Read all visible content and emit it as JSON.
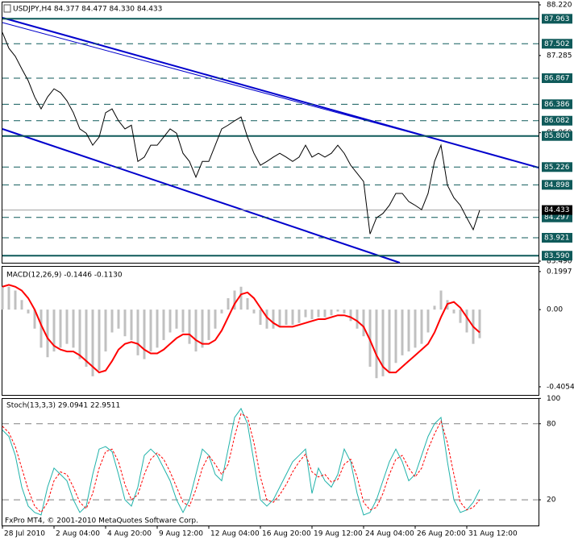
{
  "chart_data": [
    {
      "type": "line",
      "title": "USDJPY,H4 84.377 84.477 84.330 84.433",
      "categories": [
        "28 Jul 2010",
        null,
        null,
        null,
        null,
        null,
        null,
        null,
        "2 Aug 04:00",
        null,
        null,
        null,
        null,
        null,
        null,
        null,
        "4 Aug 20:00",
        null,
        null,
        null,
        null,
        null,
        null,
        null,
        "9 Aug 12:00",
        null,
        null,
        null,
        null,
        null,
        null,
        null,
        "12 Aug 04:00",
        null,
        null,
        null,
        null,
        null,
        null,
        null,
        "16 Aug 20:00",
        null,
        null,
        null,
        null,
        null,
        null,
        null,
        "19 Aug 12:00",
        null,
        null,
        null,
        null,
        null,
        null,
        null,
        "24 Aug 04:00",
        null,
        null,
        null,
        null,
        null,
        null,
        null,
        "26 Aug 20:00",
        null,
        null,
        null,
        null,
        null,
        null,
        null,
        "31 Aug 12:00",
        null,
        null
      ],
      "series": [
        {
          "color": "#000000",
          "style": "line",
          "values": [
            87.71,
            87.42,
            87.27,
            87.04,
            86.82,
            86.52,
            86.3,
            86.52,
            86.67,
            86.6,
            86.45,
            86.23,
            85.93,
            85.85,
            85.63,
            85.78,
            86.23,
            86.3,
            86.08,
            85.93,
            86.0,
            85.33,
            85.41,
            85.63,
            85.63,
            85.78,
            85.93,
            85.85,
            85.48,
            85.33,
            85.04,
            85.33,
            85.33,
            85.63,
            85.93,
            86.0,
            86.08,
            86.15,
            85.78,
            85.48,
            85.26,
            85.33,
            85.41,
            85.48,
            85.41,
            85.33,
            85.41,
            85.63,
            85.41,
            85.48,
            85.41,
            85.48,
            85.63,
            85.48,
            85.26,
            85.11,
            84.96,
            83.99,
            84.29,
            84.37,
            84.52,
            84.74,
            84.74,
            84.59,
            84.52,
            84.44,
            84.74,
            85.33,
            85.63,
            84.89,
            84.66,
            84.52,
            84.29,
            84.07,
            84.43
          ]
        }
      ],
      "ylim": [
        83.46,
        88.28
      ],
      "yticks": [
        {
          "value": 88.22,
          "label": "88.220"
        },
        {
          "value": 87.285,
          "label": "87.285"
        },
        {
          "value": 85.86,
          "label": "85.860"
        },
        {
          "value": 83.49,
          "label": "83.490"
        }
      ],
      "levels": [
        {
          "value": 87.963,
          "label": "87.963",
          "style": "solid"
        },
        {
          "value": 87.502,
          "label": "87.502",
          "style": "dashed"
        },
        {
          "value": 86.867,
          "label": "86.867",
          "style": "dashed"
        },
        {
          "value": 86.386,
          "label": "86.386",
          "style": "dashed"
        },
        {
          "value": 86.082,
          "label": "86.082",
          "style": "dashed"
        },
        {
          "value": 85.8,
          "label": "85.800",
          "style": "solid"
        },
        {
          "value": 85.226,
          "label": "85.226",
          "style": "dashed"
        },
        {
          "value": 84.898,
          "label": "84.898",
          "style": "dashed"
        },
        {
          "value": 84.297,
          "label": "84.297",
          "style": "dashed"
        },
        {
          "value": 83.921,
          "label": "83.921",
          "style": "dashed"
        },
        {
          "value": 83.59,
          "label": "83.590",
          "style": "solid"
        }
      ],
      "level_color": "#0f5a5a",
      "last": {
        "value": 84.433,
        "label": "84.433"
      }
    },
    {
      "type": "bar",
      "title": "MACD(12,26,9) -0.1446 -0.1130",
      "series": [
        {
          "color": "#c0c0c0",
          "style": "bar",
          "values": [
            0.12,
            0.12,
            0.1,
            0.05,
            -0.02,
            -0.1,
            -0.2,
            -0.25,
            -0.22,
            -0.2,
            -0.18,
            -0.2,
            -0.26,
            -0.3,
            -0.35,
            -0.32,
            -0.22,
            -0.12,
            -0.1,
            -0.14,
            -0.16,
            -0.24,
            -0.26,
            -0.22,
            -0.2,
            -0.16,
            -0.12,
            -0.1,
            -0.12,
            -0.18,
            -0.22,
            -0.2,
            -0.16,
            -0.1,
            -0.02,
            0.06,
            0.1,
            0.12,
            0.06,
            -0.02,
            -0.08,
            -0.1,
            -0.1,
            -0.09,
            -0.08,
            -0.08,
            -0.07,
            -0.04,
            -0.05,
            -0.04,
            -0.04,
            -0.03,
            -0.01,
            -0.02,
            -0.06,
            -0.1,
            -0.14,
            -0.3,
            -0.36,
            -0.35,
            -0.33,
            -0.28,
            -0.24,
            -0.22,
            -0.2,
            -0.18,
            -0.12,
            0.02,
            0.1,
            0.05,
            -0.02,
            -0.07,
            -0.12,
            -0.18,
            -0.15
          ]
        },
        {
          "color": "#ff0000",
          "style": "line",
          "values": [
            0.12,
            0.13,
            0.12,
            0.1,
            0.06,
            0.0,
            -0.08,
            -0.15,
            -0.19,
            -0.21,
            -0.22,
            -0.22,
            -0.24,
            -0.27,
            -0.3,
            -0.33,
            -0.32,
            -0.27,
            -0.21,
            -0.18,
            -0.17,
            -0.18,
            -0.21,
            -0.23,
            -0.23,
            -0.21,
            -0.18,
            -0.15,
            -0.13,
            -0.13,
            -0.16,
            -0.18,
            -0.18,
            -0.16,
            -0.11,
            -0.04,
            0.03,
            0.08,
            0.09,
            0.06,
            0.01,
            -0.04,
            -0.07,
            -0.09,
            -0.09,
            -0.09,
            -0.08,
            -0.07,
            -0.06,
            -0.05,
            -0.05,
            -0.04,
            -0.03,
            -0.03,
            -0.04,
            -0.06,
            -0.09,
            -0.16,
            -0.24,
            -0.3,
            -0.33,
            -0.33,
            -0.3,
            -0.27,
            -0.24,
            -0.21,
            -0.18,
            -0.12,
            -0.04,
            0.03,
            0.04,
            0.01,
            -0.04,
            -0.09,
            -0.12
          ]
        }
      ],
      "ylim": [
        -0.448,
        0.229
      ],
      "yticks": [
        0.1997,
        {
          "value": 0,
          "label": "0.00"
        },
        -0.4054
      ]
    },
    {
      "type": "line",
      "title": "Stoch(13,3,3) 29.0941 22.9511",
      "annotation": "FxPro MT4, © 2001-2010 MetaQuotes Software Corp.",
      "series": [
        {
          "color": "#20b2aa",
          "style": "line",
          "values": [
            75,
            70,
            55,
            30,
            15,
            10,
            8,
            30,
            45,
            40,
            35,
            20,
            10,
            15,
            40,
            60,
            62,
            58,
            40,
            20,
            15,
            30,
            55,
            60,
            55,
            45,
            35,
            20,
            10,
            20,
            40,
            60,
            55,
            40,
            35,
            60,
            85,
            92,
            80,
            50,
            20,
            15,
            20,
            30,
            40,
            50,
            55,
            60,
            25,
            45,
            35,
            30,
            40,
            60,
            50,
            25,
            8,
            10,
            20,
            35,
            50,
            60,
            50,
            35,
            40,
            55,
            70,
            80,
            85,
            50,
            20,
            10,
            12,
            18,
            28
          ]
        },
        {
          "color": "#ff0000",
          "style": "dashed",
          "values": [
            78,
            73,
            62,
            45,
            28,
            15,
            10,
            18,
            35,
            42,
            40,
            30,
            18,
            13,
            25,
            45,
            58,
            60,
            50,
            32,
            20,
            24,
            40,
            52,
            57,
            52,
            42,
            30,
            18,
            15,
            28,
            45,
            55,
            48,
            40,
            48,
            70,
            88,
            85,
            65,
            38,
            20,
            18,
            24,
            32,
            42,
            50,
            56,
            42,
            38,
            40,
            34,
            36,
            48,
            52,
            38,
            18,
            12,
            14,
            25,
            40,
            52,
            55,
            45,
            38,
            45,
            60,
            72,
            82,
            65,
            40,
            18,
            12,
            14,
            20
          ]
        }
      ],
      "ylim": [
        -0.3,
        100.2
      ],
      "yticks": [
        100,
        80,
        20
      ],
      "levels": [
        80,
        20
      ]
    }
  ]
}
